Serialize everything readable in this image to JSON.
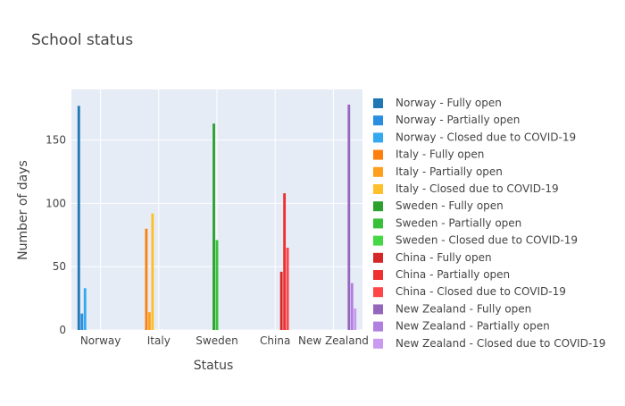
{
  "chart_data": {
    "type": "bar",
    "title": "School status",
    "xlabel": "Status",
    "ylabel": "Number of days",
    "ylim": [
      0,
      190
    ],
    "yticks": [
      0,
      50,
      100,
      150
    ],
    "grid": true,
    "legend_position": "right",
    "categories": [
      "Norway",
      "Italy",
      "Sweden",
      "China",
      "New Zealand"
    ],
    "series": [
      {
        "name": "Norway - Fully open",
        "color": "#1f77b4",
        "values": [
          177,
          0,
          0,
          0,
          0
        ]
      },
      {
        "name": "Norway - Partially open",
        "color": "#2a8ee0",
        "values": [
          13,
          0,
          0,
          0,
          0
        ]
      },
      {
        "name": "Norway - Closed due to COVID-19",
        "color": "#35a9f0",
        "values": [
          33,
          0,
          0,
          0,
          0
        ]
      },
      {
        "name": "Italy - Fully open",
        "color": "#ff7f0e",
        "values": [
          0,
          80,
          0,
          0,
          0
        ]
      },
      {
        "name": "Italy - Partially open",
        "color": "#ff9f1c",
        "values": [
          0,
          14,
          0,
          0,
          0
        ]
      },
      {
        "name": "Italy - Closed due to COVID-19",
        "color": "#ffbf2a",
        "values": [
          0,
          92,
          0,
          0,
          0
        ]
      },
      {
        "name": "Sweden - Fully open",
        "color": "#2ca02c",
        "values": [
          0,
          0,
          163,
          0,
          0
        ]
      },
      {
        "name": "Sweden - Partially open",
        "color": "#38c038",
        "values": [
          0,
          0,
          71,
          0,
          0
        ]
      },
      {
        "name": "Sweden - Closed due to COVID-19",
        "color": "#45d845",
        "values": [
          0,
          0,
          0,
          0,
          0
        ]
      },
      {
        "name": "China - Fully open",
        "color": "#d62728",
        "values": [
          0,
          0,
          0,
          46,
          0
        ]
      },
      {
        "name": "China - Partially open",
        "color": "#f03030",
        "values": [
          0,
          0,
          0,
          108,
          0
        ]
      },
      {
        "name": "China - Closed due to COVID-19",
        "color": "#ff4545",
        "values": [
          0,
          0,
          0,
          65,
          0
        ]
      },
      {
        "name": "New Zealand - Fully open",
        "color": "#9467bd",
        "values": [
          0,
          0,
          0,
          0,
          178
        ]
      },
      {
        "name": "New Zealand - Partially open",
        "color": "#b07fe0",
        "values": [
          0,
          0,
          0,
          0,
          37
        ]
      },
      {
        "name": "New Zealand - Closed due to COVID-19",
        "color": "#c99af0",
        "values": [
          0,
          0,
          0,
          0,
          17
        ]
      }
    ]
  }
}
